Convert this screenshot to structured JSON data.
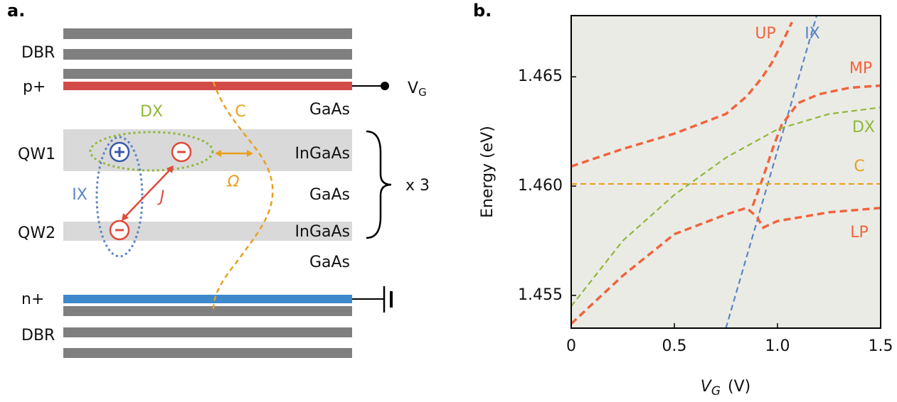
{
  "panel_a": {
    "label": "a.",
    "left_labels": [
      "DBR",
      "p+",
      "QW1",
      "QW2",
      "n+",
      "DBR"
    ],
    "material_labels": [
      "GaAs",
      "InGaAs",
      "GaAs",
      "InGaAs",
      "GaAs"
    ],
    "gate": {
      "main": "V",
      "sub": "G"
    },
    "repeat": "x 3",
    "annotations": {
      "dx": "DX",
      "c": "C",
      "ix": "IX",
      "j": "J",
      "omega": "Ω"
    }
  },
  "chart_data": {
    "type": "line",
    "panel_label": "b.",
    "ylabel": "Energy (eV)",
    "xlabel": {
      "main": "V",
      "sub": "G",
      "unit": "(V)"
    },
    "xlim": [
      0,
      1.5
    ],
    "ylim": [
      1.4535,
      1.4678
    ],
    "xticks": [
      0,
      0.5,
      {
        "value": 1,
        "label": "1.0"
      },
      1.5
    ],
    "yticks": [
      1.455,
      {
        "value": 1.46,
        "label": "1.460"
      },
      1.465
    ],
    "series": [
      {
        "name": "UP",
        "color": "#f0643c",
        "x": [
          0,
          0.25,
          0.5,
          0.75,
          0.85,
          0.92,
          0.97,
          1.02,
          1.07
        ],
        "values": [
          1.4609,
          1.4617,
          1.4624,
          1.4633,
          1.4641,
          1.4649,
          1.4656,
          1.4665,
          1.4675
        ]
      },
      {
        "name": "IX",
        "color": "#5b84c4",
        "x": [
          0.75,
          1.19
        ],
        "values": [
          1.4535,
          1.4678
        ]
      },
      {
        "name": "MP",
        "color": "#f0643c",
        "x": [
          0.88,
          0.93,
          0.98,
          1.02,
          1.1,
          1.2,
          1.35,
          1.5
        ],
        "values": [
          1.4591,
          1.4604,
          1.4618,
          1.4628,
          1.4638,
          1.4642,
          1.4645,
          1.4646
        ]
      },
      {
        "name": "DX",
        "color": "#8fb838",
        "x": [
          0,
          0.25,
          0.5,
          0.75,
          1,
          1.25,
          1.5
        ],
        "values": [
          1.4545,
          1.4575,
          1.4596,
          1.4613,
          1.4626,
          1.4633,
          1.4636
        ]
      },
      {
        "name": "C",
        "color": "#e8a020",
        "x": [
          0,
          1.5
        ],
        "values": [
          1.4601,
          1.4601
        ]
      },
      {
        "name": "LP",
        "color": "#f0643c",
        "x": [
          0,
          0.25,
          0.5,
          0.75,
          0.85,
          0.9,
          0.93,
          1,
          1.25,
          1.5
        ],
        "values": [
          1.4537,
          1.4559,
          1.4578,
          1.4587,
          1.459,
          1.4586,
          1.4581,
          1.4584,
          1.4588,
          1.459
        ]
      }
    ]
  }
}
